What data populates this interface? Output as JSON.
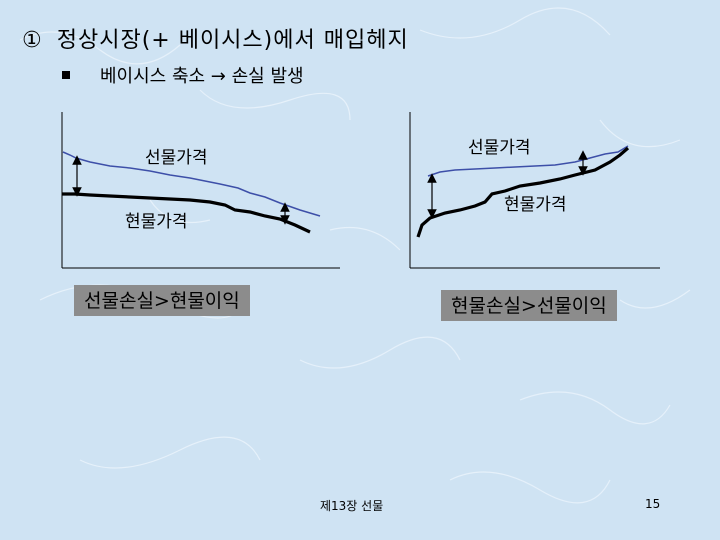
{
  "slide": {
    "title_num": "①",
    "title": "정상시장(+ 베이시스)에서  매입헤지",
    "bullet_text": "베이시스 축소 → 손실 발생"
  },
  "left_panel": {
    "futures_label": "선물가격",
    "spot_label": "현물가격",
    "result_label": "선물손실>현물이익"
  },
  "right_panel": {
    "futures_label": "선물가격",
    "spot_label": "현물가격",
    "result_label": "현물손실>선물이익"
  },
  "colors": {
    "futures_line": "#3d4fa8",
    "spot_line": "#000000",
    "label_box": "#8c8c8c"
  },
  "footer": {
    "chapter": "제13장  선물",
    "page": "15"
  }
}
